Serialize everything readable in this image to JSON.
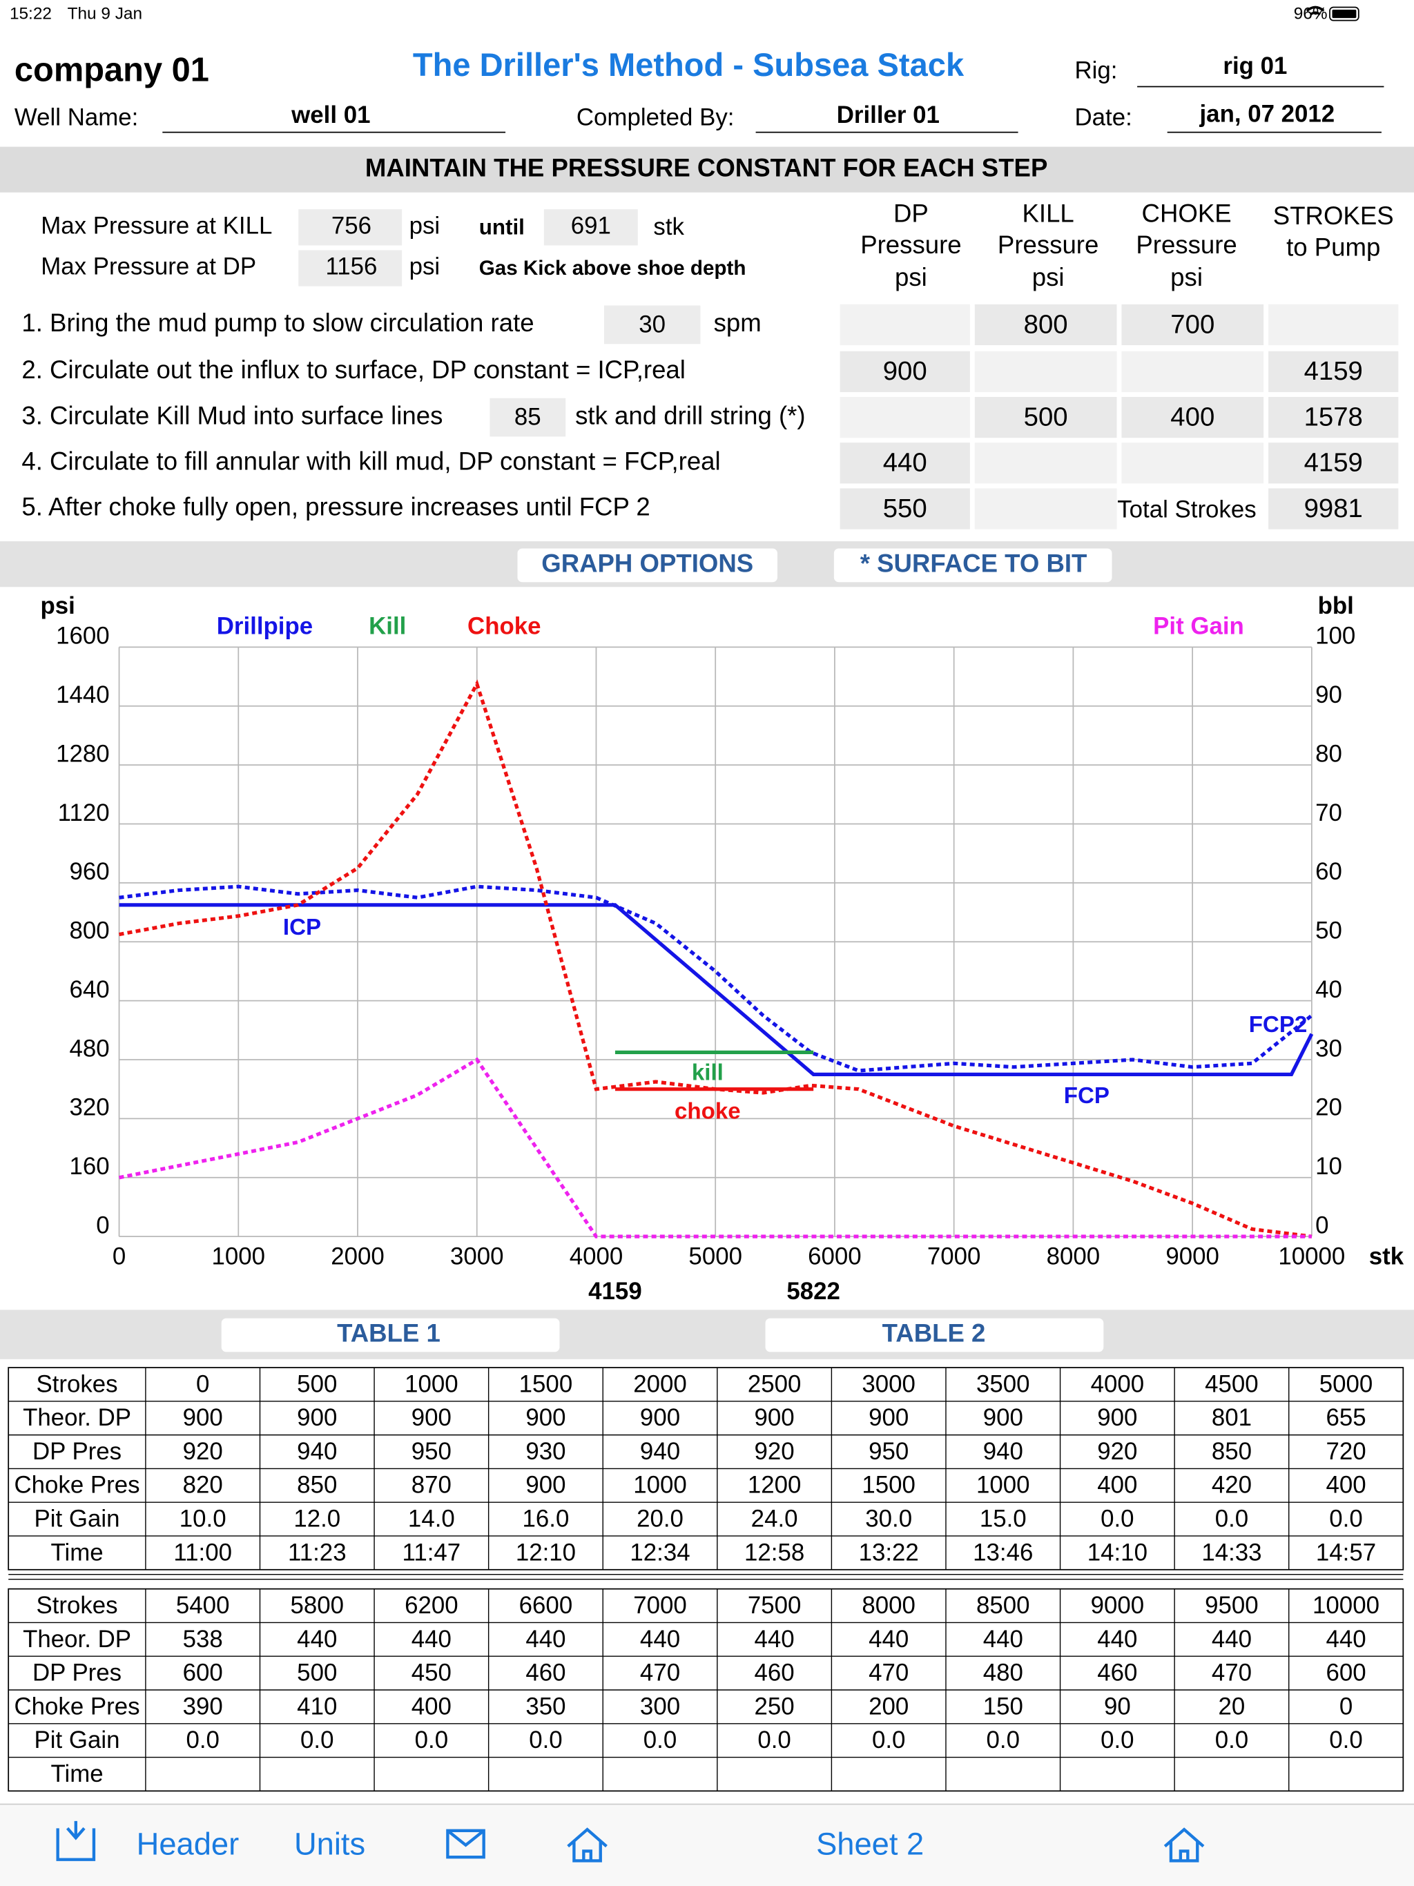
{
  "status_bar": {
    "time": "15:22",
    "date": "Thu 9 Jan",
    "battery": "96%"
  },
  "header": {
    "company": "company 01",
    "title": "The Driller's Method - Subsea Stack",
    "rig_label": "Rig:",
    "rig": "rig 01",
    "well_label": "Well Name:",
    "well": "well 01",
    "completed_label": "Completed By:",
    "completed_by": "Driller 01",
    "date_label": "Date:",
    "date": "jan, 07 2012"
  },
  "banner": "MAINTAIN THE PRESSURE CONSTANT FOR EACH STEP",
  "limits": {
    "kill_label": "Max Pressure at KILL",
    "kill_value": 756,
    "kill_unit": "psi",
    "until_label": "until",
    "until_value": 691,
    "until_unit": "stk",
    "dp_label": "Max Pressure at DP",
    "dp_value": 1156,
    "dp_unit": "psi",
    "note": "Gas Kick above shoe depth"
  },
  "columns": [
    [
      "DP",
      "Pressure",
      "psi"
    ],
    [
      "KILL",
      "Pressure",
      "psi"
    ],
    [
      "CHOKE",
      "Pressure",
      "psi"
    ],
    [
      "STROKES",
      "to Pump"
    ]
  ],
  "steps": [
    {
      "text": "1. Bring the mud pump to slow circulation rate",
      "input": 30,
      "suffix": "spm",
      "cells": [
        null,
        800,
        700,
        null
      ]
    },
    {
      "text": "2. Circulate out the influx to surface, DP constant = ICP,real",
      "cells": [
        900,
        null,
        null,
        4159
      ]
    },
    {
      "text": "3. Circulate Kill Mud into surface lines",
      "input": 85,
      "suffix": "stk and drill string (*)",
      "cells": [
        null,
        500,
        400,
        1578
      ]
    },
    {
      "text": "4. Circulate to fill annular with kill mud, DP constant = FCP,real",
      "cells": [
        440,
        null,
        null,
        4159
      ]
    },
    {
      "text": "5. After choke fully open, pressure increases until FCP 2",
      "cells": [
        550,
        null,
        "Total Strokes",
        9981
      ]
    }
  ],
  "buttons": [
    "GRAPH OPTIONS",
    "* SURFACE TO BIT"
  ],
  "chart_data": {
    "type": "line",
    "y_label": "psi",
    "y2_label": "bbl",
    "x_label": "stk",
    "xlim": [
      0,
      10000
    ],
    "xticks": [
      0,
      1000,
      2000,
      3000,
      4000,
      5000,
      6000,
      7000,
      8000,
      9000,
      10000
    ],
    "ylim": [
      0,
      1600
    ],
    "yticks": [
      0,
      160,
      320,
      480,
      640,
      800,
      960,
      1120,
      1280,
      1440,
      1600
    ],
    "y2lim": [
      0,
      100
    ],
    "y2ticks": [
      0,
      10,
      20,
      30,
      40,
      50,
      60,
      70,
      80,
      90,
      100
    ],
    "grid": true,
    "marked_x": [
      4159,
      5822
    ],
    "series": [
      {
        "name": "Drillpipe",
        "color": "#1414e6",
        "style": "solid",
        "x": [
          0,
          4159,
          5822,
          9830,
          10000
        ],
        "values": [
          900,
          900,
          440,
          440,
          550
        ]
      },
      {
        "color": "#1414e6",
        "style": "dotted",
        "x": [
          0,
          500,
          1000,
          1500,
          2000,
          2500,
          3000,
          3500,
          4000,
          4500,
          5000,
          5400,
          5800,
          6200,
          6600,
          7000,
          7500,
          8000,
          8500,
          9000,
          9500,
          10000
        ],
        "values": [
          920,
          940,
          950,
          930,
          940,
          920,
          950,
          940,
          920,
          850,
          720,
          600,
          500,
          450,
          460,
          470,
          460,
          470,
          480,
          460,
          470,
          600
        ]
      },
      {
        "name": "Kill",
        "color": "#22a04a",
        "style": "solid",
        "x": [
          4159,
          5822
        ],
        "values": [
          500,
          500
        ]
      },
      {
        "name": "Choke",
        "color": "#ee1111",
        "style": "dotted",
        "x": [
          0,
          500,
          1000,
          1500,
          2000,
          2500,
          3000,
          3500,
          4000,
          4500,
          5000,
          5400,
          5800,
          6200,
          6600,
          7000,
          7500,
          8000,
          8500,
          9000,
          9500,
          10000
        ],
        "values": [
          820,
          850,
          870,
          900,
          1000,
          1200,
          1500,
          1000,
          400,
          420,
          400,
          390,
          410,
          400,
          350,
          300,
          250,
          200,
          150,
          90,
          20,
          0
        ]
      },
      {
        "color": "#ee1111",
        "style": "solid",
        "x": [
          4159,
          5822
        ],
        "values": [
          400,
          400
        ]
      },
      {
        "name": "Pit Gain",
        "color": "#ee22ee",
        "style": "dotted",
        "axis": "y2",
        "x": [
          0,
          500,
          1000,
          1500,
          2000,
          2500,
          3000,
          3500,
          4000,
          4500,
          5000,
          5400,
          5800,
          6200,
          6600,
          7000,
          7500,
          8000,
          8500,
          9000,
          9500,
          10000
        ],
        "values": [
          10,
          12,
          14,
          16,
          20,
          24,
          30,
          15,
          0,
          0,
          0,
          0,
          0,
          0,
          0,
          0,
          0,
          0,
          0,
          0,
          0,
          0
        ]
      }
    ],
    "annotations": [
      {
        "text": "ICP",
        "color": "#1414e6"
      },
      {
        "text": "kill",
        "color": "#22a04a"
      },
      {
        "text": "choke",
        "color": "#ee1111"
      },
      {
        "text": "FCP",
        "color": "#1414e6"
      },
      {
        "text": "FCP2",
        "color": "#1414e6"
      }
    ]
  },
  "tables": [
    {
      "title": "TABLE 1",
      "rows": [
        [
          "Strokes",
          "0",
          "500",
          "1000",
          "1500",
          "2000",
          "2500",
          "3000",
          "3500",
          "4000",
          "4500",
          "5000"
        ],
        [
          "Theor. DP",
          "900",
          "900",
          "900",
          "900",
          "900",
          "900",
          "900",
          "900",
          "900",
          "801",
          "655"
        ],
        [
          "DP Pres",
          "920",
          "940",
          "950",
          "930",
          "940",
          "920",
          "950",
          "940",
          "920",
          "850",
          "720"
        ],
        [
          "Choke Pres",
          "820",
          "850",
          "870",
          "900",
          "1000",
          "1200",
          "1500",
          "1000",
          "400",
          "420",
          "400"
        ],
        [
          "Pit Gain",
          "10.0",
          "12.0",
          "14.0",
          "16.0",
          "20.0",
          "24.0",
          "30.0",
          "15.0",
          "0.0",
          "0.0",
          "0.0"
        ],
        [
          "Time",
          "11:00",
          "11:23",
          "11:47",
          "12:10",
          "12:34",
          "12:58",
          "13:22",
          "13:46",
          "14:10",
          "14:33",
          "14:57"
        ]
      ]
    },
    {
      "title": "TABLE 2",
      "rows": [
        [
          "Strokes",
          "5400",
          "5800",
          "6200",
          "6600",
          "7000",
          "7500",
          "8000",
          "8500",
          "9000",
          "9500",
          "10000"
        ],
        [
          "Theor. DP",
          "538",
          "440",
          "440",
          "440",
          "440",
          "440",
          "440",
          "440",
          "440",
          "440",
          "440"
        ],
        [
          "DP Pres",
          "600",
          "500",
          "450",
          "460",
          "470",
          "460",
          "470",
          "480",
          "460",
          "470",
          "600"
        ],
        [
          "Choke Pres",
          "390",
          "410",
          "400",
          "350",
          "300",
          "250",
          "200",
          "150",
          "90",
          "20",
          "0"
        ],
        [
          "Pit Gain",
          "0.0",
          "0.0",
          "0.0",
          "0.0",
          "0.0",
          "0.0",
          "0.0",
          "0.0",
          "0.0",
          "0.0",
          "0.0"
        ],
        [
          "Time",
          null,
          null,
          null,
          null,
          null,
          null,
          null,
          null,
          null,
          null,
          null
        ]
      ]
    }
  ],
  "toolbar": {
    "header": "Header",
    "units": "Units",
    "sheet": "Sheet 2"
  }
}
